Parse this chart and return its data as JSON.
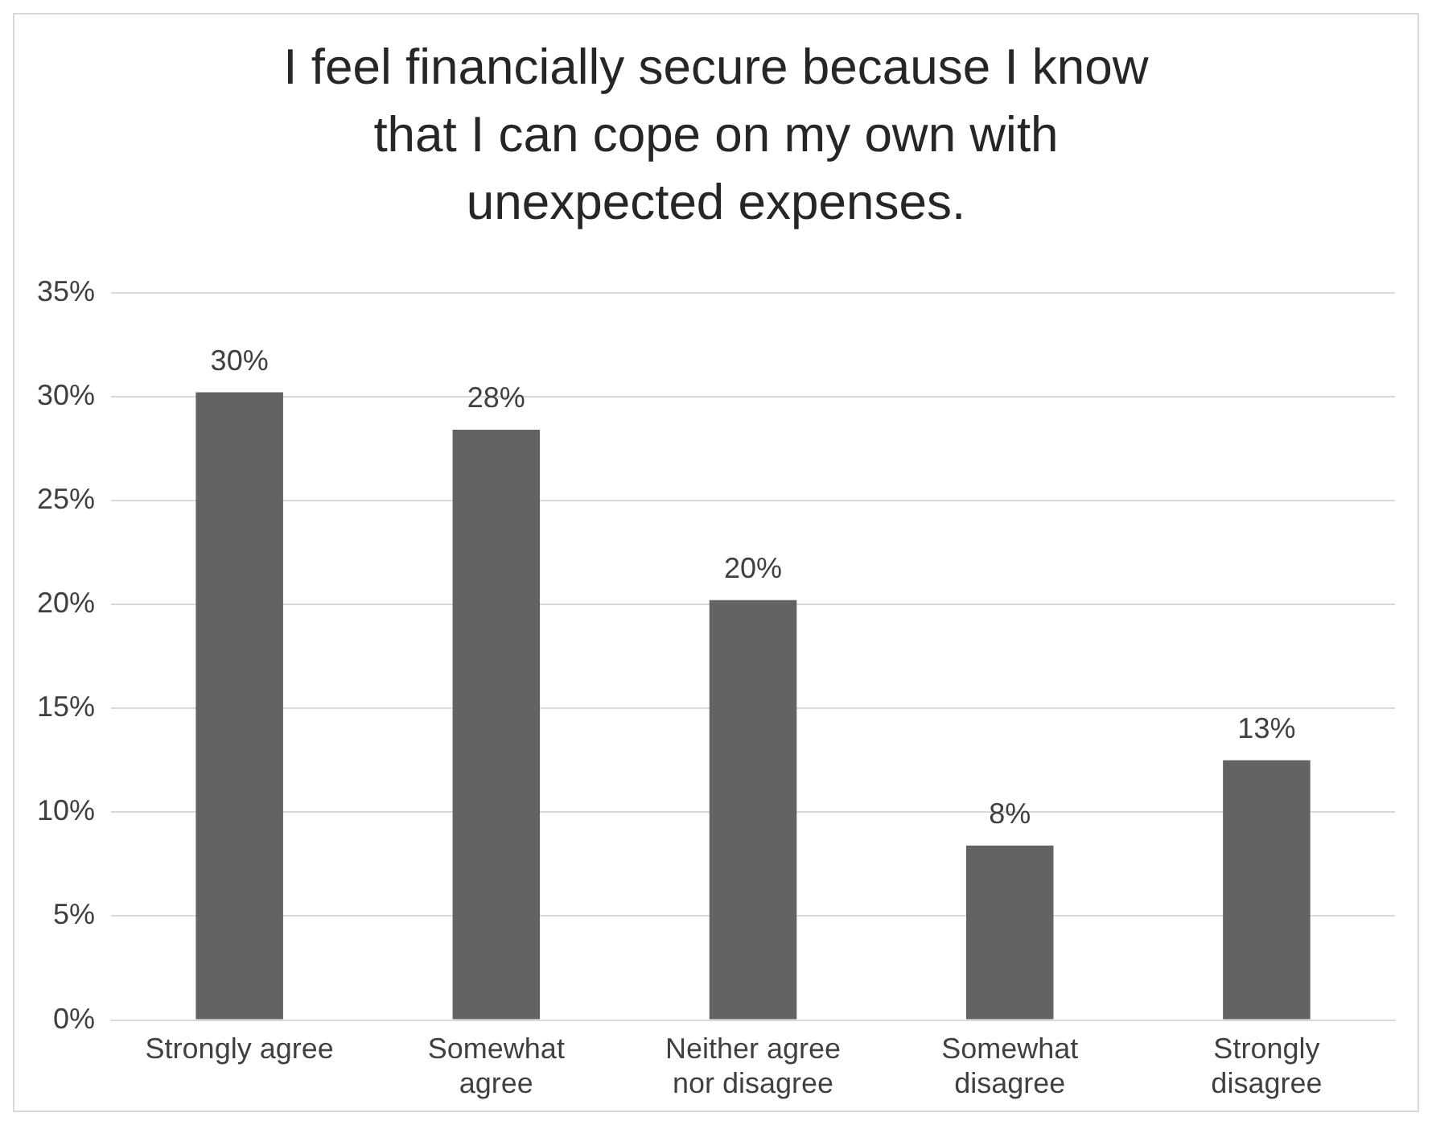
{
  "chart_data": {
    "type": "bar",
    "title": "I feel financially secure because I know that I can cope on my own with unexpected expenses.",
    "categories": [
      "Strongly agree",
      "Somewhat agree",
      "Neither agree nor disagree",
      "Somewhat disagree",
      "Strongly disagree"
    ],
    "values": [
      30.2,
      28.4,
      20.2,
      8.4,
      12.5
    ],
    "value_labels": [
      "30%",
      "28%",
      "20%",
      "8%",
      "13%"
    ],
    "color": "#636363",
    "ylim": [
      0,
      35
    ],
    "yticks": [
      {
        "value": 0,
        "label": "0%"
      },
      {
        "value": 5,
        "label": "5%"
      },
      {
        "value": 10,
        "label": "10%"
      },
      {
        "value": 15,
        "label": "15%"
      },
      {
        "value": 20,
        "label": "20%"
      },
      {
        "value": 25,
        "label": "25%"
      },
      {
        "value": 30,
        "label": "30%"
      },
      {
        "value": 35,
        "label": "35%"
      }
    ],
    "grid": "y",
    "legend": false
  }
}
